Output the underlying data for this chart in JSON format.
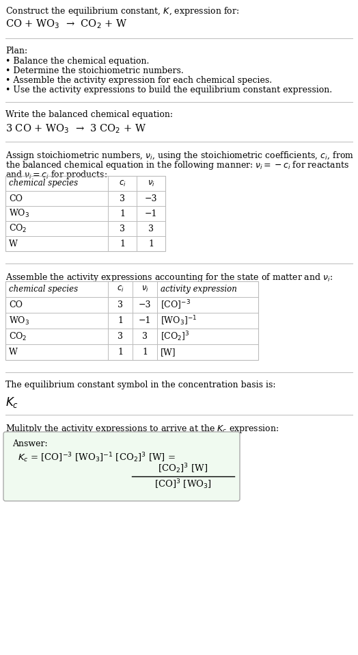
{
  "title_line1": "Construct the equilibrium constant, $K$, expression for:",
  "title_line2": "CO + WO$_3$  →  CO$_2$ + W",
  "plan_header": "Plan:",
  "plan_items": [
    "• Balance the chemical equation.",
    "• Determine the stoichiometric numbers.",
    "• Assemble the activity expression for each chemical species.",
    "• Use the activity expressions to build the equilibrium constant expression."
  ],
  "balanced_header": "Write the balanced chemical equation:",
  "balanced_eq": "3 CO + WO$_3$  →  3 CO$_2$ + W",
  "stoich_intro1": "Assign stoichiometric numbers, $\\nu_i$, using the stoichiometric coefficients, $c_i$, from",
  "stoich_intro2": "the balanced chemical equation in the following manner: $\\nu_i = -c_i$ for reactants",
  "stoich_intro3": "and $\\nu_i = c_i$ for products:",
  "table1_headers": [
    "chemical species",
    "$c_i$",
    "$\\nu_i$"
  ],
  "table1_rows": [
    [
      "CO",
      "3",
      "−3"
    ],
    [
      "WO$_3$",
      "1",
      "−1"
    ],
    [
      "CO$_2$",
      "3",
      "3"
    ],
    [
      "W",
      "1",
      "1"
    ]
  ],
  "activity_intro": "Assemble the activity expressions accounting for the state of matter and $\\nu_i$:",
  "table2_headers": [
    "chemical species",
    "$c_i$",
    "$\\nu_i$",
    "activity expression"
  ],
  "table2_rows": [
    [
      "CO",
      "3",
      "−3",
      "[CO]$^{-3}$"
    ],
    [
      "WO$_3$",
      "1",
      "−1",
      "[WO$_3$]$^{-1}$"
    ],
    [
      "CO$_2$",
      "3",
      "3",
      "[CO$_2$]$^3$"
    ],
    [
      "W",
      "1",
      "1",
      "[W]"
    ]
  ],
  "kc_intro": "The equilibrium constant symbol in the concentration basis is:",
  "kc_symbol": "$K_c$",
  "multiply_intro": "Mulitply the activity expressions to arrive at the $K_c$ expression:",
  "answer_label": "Answer:",
  "bg_color": "#ffffff",
  "text_color": "#000000",
  "sep_color": "#bbbbbb",
  "table_header_bg": "#ffffff",
  "answer_bg": "#f0faf0",
  "answer_border": "#aaaaaa",
  "font_size": 9.0,
  "eq_font_size": 10.5,
  "kc_big_size": 12.0
}
